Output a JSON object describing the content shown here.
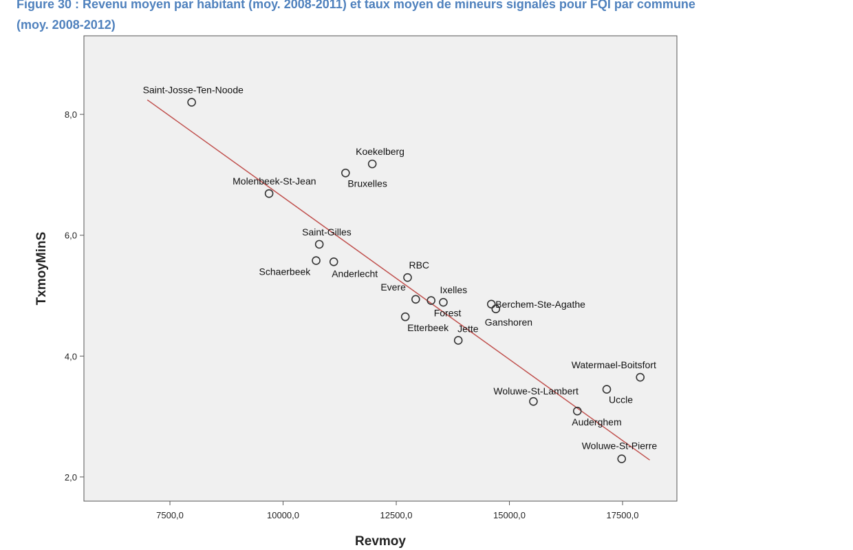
{
  "caption": {
    "line1": "Figure 30 : Revenu moyen par habitant (moy. 2008-2011) et taux moyen de mineurs signalés pour FQI par commune",
    "line2": "(moy. 2008-2012)"
  },
  "chart_data": {
    "type": "scatter",
    "title": "Figure 30 : Revenu moyen par habitant (moy. 2008-2011) et taux moyen de mineurs signalés pour FQI par commune (moy. 2008-2012)",
    "xlabel": "Revmoy",
    "ylabel": "TxmoyMinS",
    "xlim": [
      5600,
      18700
    ],
    "ylim": [
      1.6,
      9.3
    ],
    "xticks": [
      7500,
      10000,
      12500,
      15000,
      17500
    ],
    "xtick_labels": [
      "7500,0",
      "10000,0",
      "12500,0",
      "15000,0",
      "17500,0"
    ],
    "yticks": [
      2,
      4,
      6,
      8
    ],
    "ytick_labels": [
      "2,0",
      "4,0",
      "6,0",
      "8,0"
    ],
    "grid": false,
    "points": [
      {
        "label": "Saint-Josse-Ten-Noode",
        "x": 7980,
        "y": 8.2
      },
      {
        "label": "Koekelberg",
        "x": 11970,
        "y": 7.18
      },
      {
        "label": "Bruxelles",
        "x": 11380,
        "y": 7.03
      },
      {
        "label": "Molenbeek-St-Jean",
        "x": 9690,
        "y": 6.69
      },
      {
        "label": "Saint-Gilles",
        "x": 10800,
        "y": 5.85
      },
      {
        "label": "Schaerbeek",
        "x": 10730,
        "y": 5.58
      },
      {
        "label": "Anderlecht",
        "x": 11120,
        "y": 5.56
      },
      {
        "label": "RBC",
        "x": 12750,
        "y": 5.3
      },
      {
        "label": "Evere",
        "x": 12930,
        "y": 4.94
      },
      {
        "label": "Ixelles",
        "x": 13540,
        "y": 4.89
      },
      {
        "label": "Forest",
        "x": 13270,
        "y": 4.92
      },
      {
        "label": "Etterbeek",
        "x": 12700,
        "y": 4.65
      },
      {
        "label": "Jette",
        "x": 13870,
        "y": 4.26
      },
      {
        "label": "Berchem-Ste-Agathe",
        "x": 14600,
        "y": 4.86
      },
      {
        "label": "Ganshoren",
        "x": 14700,
        "y": 4.78
      },
      {
        "label": "Watermael-Boitsfort",
        "x": 17890,
        "y": 3.65
      },
      {
        "label": "Woluwe-St-Lambert",
        "x": 15530,
        "y": 3.25
      },
      {
        "label": "Uccle",
        "x": 17150,
        "y": 3.45
      },
      {
        "label": "Auderghem",
        "x": 16500,
        "y": 3.09
      },
      {
        "label": "Woluwe-St-Pierre",
        "x": 17480,
        "y": 2.3
      }
    ],
    "fit_line": {
      "x": [
        7000,
        18100
      ],
      "y": [
        8.24,
        2.28
      ],
      "color": "#c0504d"
    },
    "point_color": "#333333",
    "plot_background": "#f0f0f0"
  }
}
